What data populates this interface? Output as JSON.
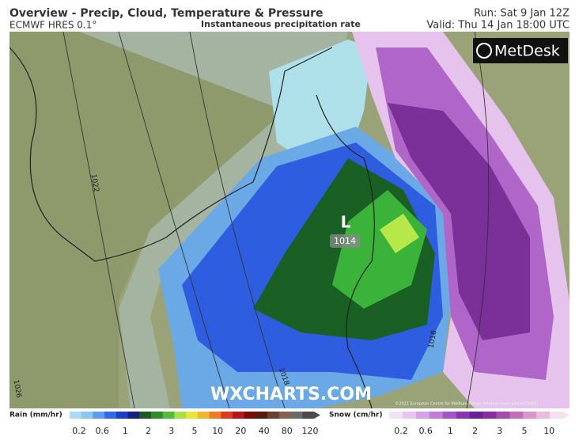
{
  "header": {
    "title": "Overview - Precip, Cloud, Temperature & Pressure",
    "model": "ECMWF HRES 0.1°",
    "subtitle": "Instantaneous precipitation rate",
    "run": "Run: Sat 9 Jan 12Z",
    "valid": "Valid: Thu 14 Jan 18:00 UTC"
  },
  "logo": "MetDesk",
  "map": {
    "low_label": "L",
    "pressure": 1014,
    "isobars": [
      1022,
      1018,
      1018,
      1026
    ],
    "watermark": "WXCHARTS.COM",
    "copyright": "©2021 European Centre for Medium-Range Weather Forecasts (ECMWF)"
  },
  "legend": {
    "rain": {
      "label": "Rain (mm/hr)",
      "ticks": [
        0.2,
        0.6,
        1,
        2,
        3,
        5,
        10,
        20,
        40,
        80,
        120
      ]
    },
    "snow": {
      "label": "Snow (cm/hr)",
      "ticks": [
        0.2,
        0.6,
        1,
        2,
        3,
        5,
        10
      ]
    }
  }
}
